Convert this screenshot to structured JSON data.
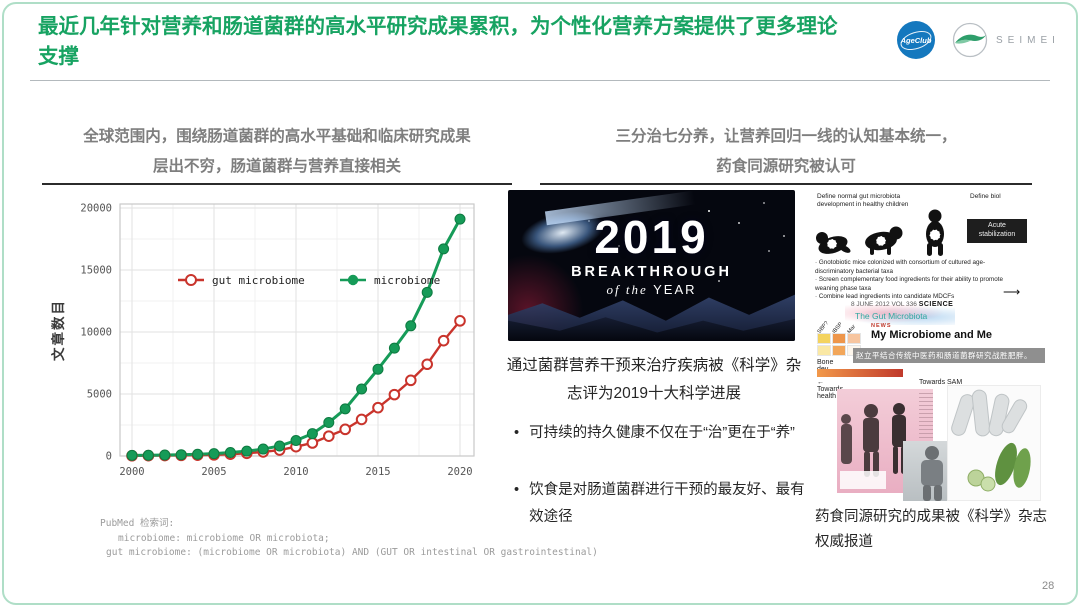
{
  "slide": {
    "title": "最近几年针对营养和肠道菌群的高水平研究成果累积，为个性化营养方案提供了更多理论支撑",
    "page_number": "28",
    "accent_green": "#17A362"
  },
  "logos": {
    "ageclub": "AgeClub",
    "seimei": "SEIMEI"
  },
  "icons": {
    "arrow_right": "⟶",
    "arrow_left": "←"
  },
  "left_section": {
    "heading_line1": "全球范围内，围绕肠道菌群的高水平基础和临床研究成果",
    "heading_line2": "层出不穷，肠道菌群与营养直接相关",
    "footnote_title": "PubMed 检索词:",
    "footnote_line1": "microbiome: microbiome OR microbiota;",
    "footnote_line2": "gut microbiome: (microbiome OR microbiota) AND (GUT OR intestinal OR gastrointestinal)"
  },
  "chart_data": {
    "type": "line",
    "title": "",
    "xlabel": "",
    "ylabel": "文章数目",
    "x": [
      2000,
      2001,
      2002,
      2003,
      2004,
      2005,
      2006,
      2007,
      2008,
      2009,
      2010,
      2011,
      2012,
      2013,
      2014,
      2015,
      2016,
      2017,
      2018,
      2019,
      2020
    ],
    "series": [
      {
        "name": "gut microbiome",
        "color": "#C9342C",
        "marker": "open",
        "values": [
          20,
          25,
          35,
          50,
          65,
          90,
          150,
          220,
          330,
          480,
          750,
          1050,
          1600,
          2150,
          2950,
          3900,
          4950,
          6100,
          7400,
          9300,
          10900
        ]
      },
      {
        "name": "microbiome",
        "color": "#169B58",
        "marker": "filled",
        "values": [
          50,
          60,
          80,
          105,
          140,
          190,
          280,
          390,
          560,
          810,
          1250,
          1800,
          2700,
          3800,
          5400,
          7000,
          8700,
          10500,
          13200,
          16700,
          19100
        ]
      }
    ],
    "xticks": [
      2000,
      2005,
      2010,
      2015,
      2020
    ],
    "yticks": [
      0,
      5000,
      10000,
      15000,
      20000
    ],
    "ylim": [
      0,
      20000
    ],
    "grid": true,
    "legend_position": "inside-upper-left"
  },
  "right_section": {
    "heading_line1": "三分治七分养，让营养回归一线的认知基本统一，",
    "heading_line2": "药食同源研究被认可",
    "breakthrough": {
      "year": "2019",
      "line1": "BREAKTHROUGH",
      "line2_italic": "of  the",
      "line2_rest": " YEAR"
    },
    "middle_text": {
      "lead": "通过菌群营养干预来治疗疾病被《科学》杂志评为2019十大科学进展",
      "bullets": [
        "可持续的持久健康不仅在于“治”更在于“养”",
        "饮食是对肠道菌群进行干预的最友好、最有效途径"
      ]
    },
    "collage": {
      "define_children": "Define normal gut microbiota development in healthy children",
      "define_biol": "Define biol",
      "acute_box": "Acute stabilization",
      "bullet1": "· Gnotobiotic mice colonized with consortium of cultured age-discriminatory bacterial taxa",
      "bullet2": "· Screen complementary food ingredients for their ability to promote weaning phase taxa",
      "bullet3": "· Combine lead ingredients into candidate MDCFs",
      "journal_meta": "8 JUNE 2012   VOL 336   ",
      "journal_name": "SCIENCE",
      "gut_microbiota": "The Gut Microbiota",
      "news_tag": "NEWS",
      "news_headline": "My Microbiome and Me",
      "news_caption": "赵立平结合传统中医药和肠道菌群研究战胜肥胖。",
      "heatmap_label1": "SBP?",
      "heatmap_label2": "IBSP",
      "heatmap_label3": "Mar",
      "heatmap_cells": [
        "#F4D35E",
        "#EE964B",
        "#F7C59F",
        "#FAE8A4",
        "#F2A65A",
        "#FDF6EC"
      ],
      "bone_dev": "Bone dev",
      "towards_health": "Towards health",
      "towards_sam": "Towards SAM"
    },
    "bottom_text": "药食同源研究的成果被《科学》杂志权威报道"
  }
}
